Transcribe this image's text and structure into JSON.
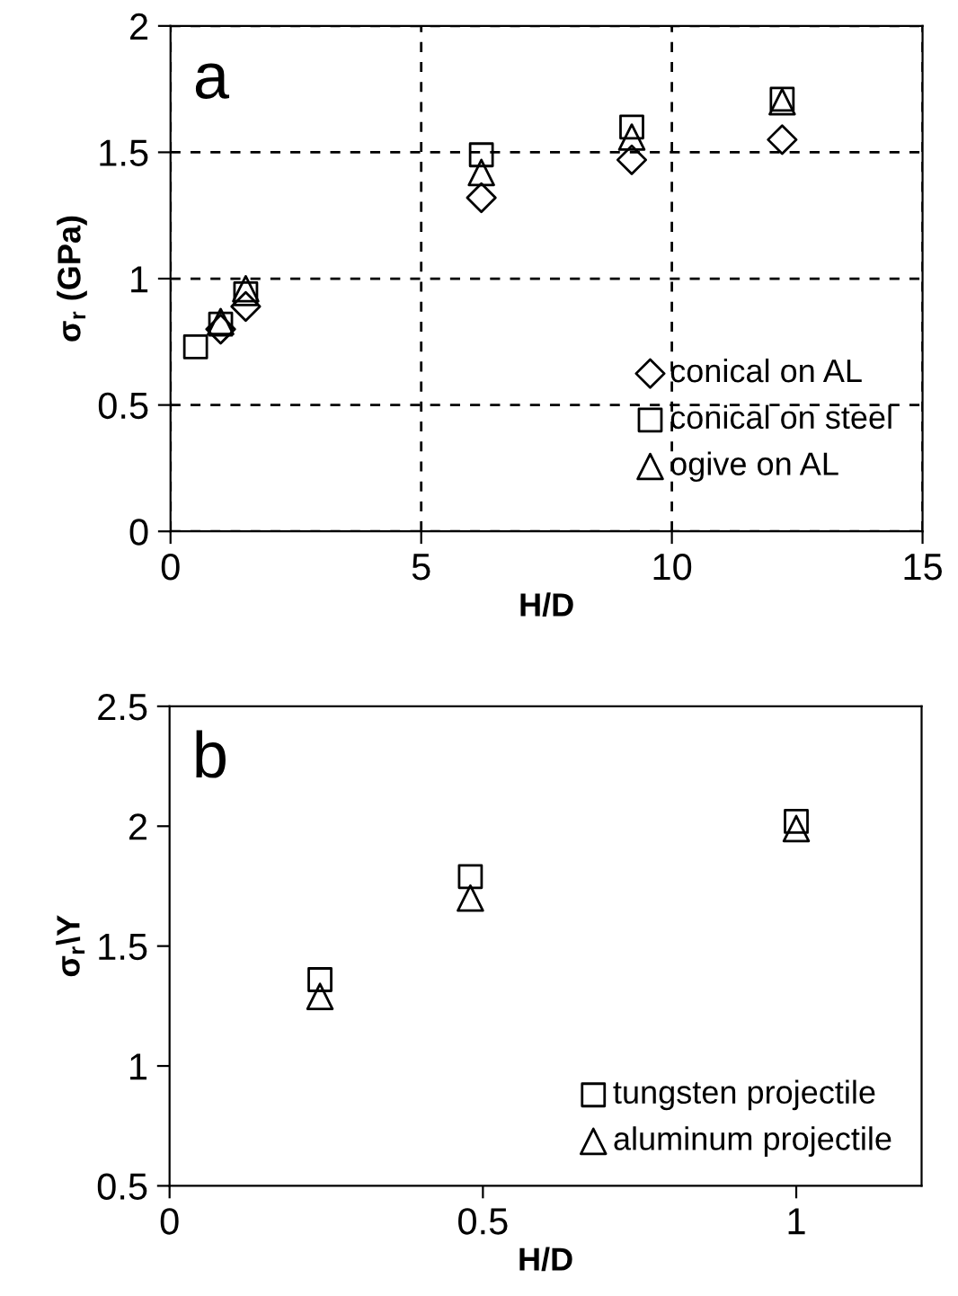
{
  "chart_data": [
    {
      "type": "scatter",
      "xlabel": "H/D",
      "ylabel": "σ$_{r}$ (GPa)",
      "annotations": [
        "a"
      ],
      "xlim": [
        0,
        15
      ],
      "xticks": [
        0,
        5,
        10,
        15
      ],
      "ylim": [
        0,
        2
      ],
      "yticks": [
        0,
        0.5,
        1,
        1.5,
        2
      ],
      "grid": true,
      "legend": "right",
      "series": [
        {
          "name": "conical on AL",
          "color": "#000000",
          "marker": "diamond",
          "x": [
            1,
            1.5,
            6.2,
            9.2,
            12.2
          ],
          "values": [
            0.8,
            0.89,
            1.32,
            1.47,
            1.55
          ]
        },
        {
          "name": "conical on steel",
          "color": "#000000",
          "marker": "square",
          "x": [
            0.5,
            1,
            1.5,
            6.2,
            9.2,
            12.2
          ],
          "values": [
            0.73,
            0.82,
            0.94,
            1.49,
            1.6,
            1.71
          ]
        },
        {
          "name": "ogive on AL",
          "color": "#000000",
          "marker": "triangle",
          "x": [
            1,
            1.5,
            6.2,
            9.2,
            12.2
          ],
          "values": [
            0.83,
            0.96,
            1.42,
            1.56,
            1.7
          ]
        }
      ]
    },
    {
      "type": "scatter",
      "xlabel": "H/D",
      "ylabel": "σ$_{r}$\\Y",
      "annotations": [
        "b"
      ],
      "xlim": [
        0,
        1.2
      ],
      "xticks": [
        0,
        0.5,
        1
      ],
      "ylim": [
        0.5,
        2.5
      ],
      "yticks": [
        0.5,
        1,
        1.5,
        2,
        2.5
      ],
      "grid": false,
      "legend": "lower right",
      "series": [
        {
          "name": "tungsten projectile",
          "color": "#000000",
          "marker": "square",
          "x": [
            0.24,
            0.48,
            1.0
          ],
          "values": [
            1.36,
            1.79,
            2.02
          ]
        },
        {
          "name": "aluminum projectile",
          "color": "#000000",
          "marker": "triangle",
          "x": [
            0.24,
            0.48,
            1.0
          ],
          "values": [
            1.29,
            1.7,
            1.99
          ]
        }
      ]
    }
  ]
}
